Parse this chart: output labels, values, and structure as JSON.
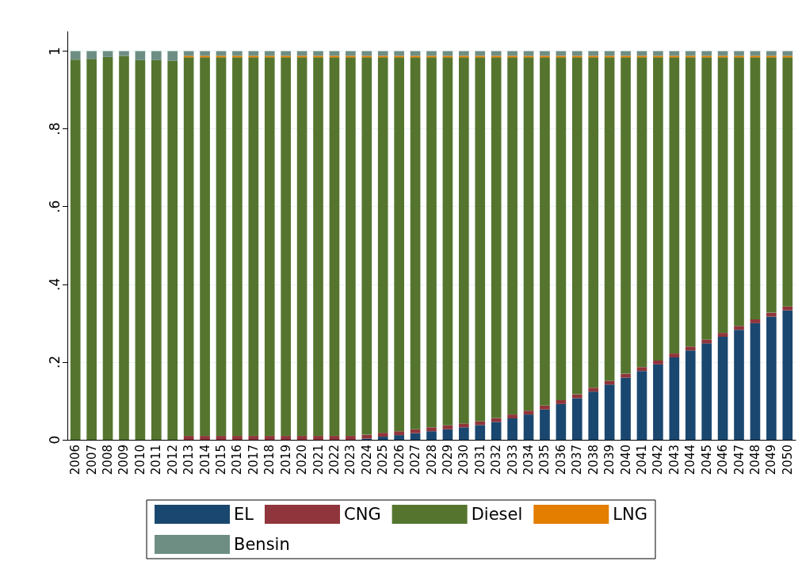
{
  "chart_data": {
    "type": "bar",
    "stacked": true,
    "categories": [
      "2006",
      "2007",
      "2008",
      "2009",
      "2010",
      "2011",
      "2012",
      "2013",
      "2014",
      "2015",
      "2016",
      "2017",
      "2018",
      "2019",
      "2020",
      "2021",
      "2022",
      "2023",
      "2024",
      "2025",
      "2026",
      "2027",
      "2028",
      "2029",
      "2030",
      "2031",
      "2032",
      "2033",
      "2034",
      "2035",
      "2036",
      "2037",
      "2038",
      "2039",
      "2040",
      "2041",
      "2042",
      "2043",
      "2044",
      "2045",
      "2046",
      "2047",
      "2048",
      "2049",
      "2050"
    ],
    "series": [
      {
        "name": "EL",
        "color": "#1a476f",
        "values": [
          0,
          0,
          0,
          0,
          0,
          0,
          0,
          0,
          0,
          0,
          0,
          0,
          0,
          0,
          0,
          0,
          0,
          0,
          0.003,
          0.008,
          0.012,
          0.017,
          0.022,
          0.027,
          0.032,
          0.038,
          0.046,
          0.055,
          0.065,
          0.078,
          0.092,
          0.107,
          0.124,
          0.142,
          0.16,
          0.177,
          0.194,
          0.212,
          0.23,
          0.248,
          0.265,
          0.283,
          0.3,
          0.317,
          0.333
        ]
      },
      {
        "name": "CNG",
        "color": "#90353b",
        "values": [
          0,
          0,
          0,
          0,
          0,
          0,
          0,
          0.01,
          0.01,
          0.01,
          0.01,
          0.01,
          0.01,
          0.01,
          0.01,
          0.01,
          0.01,
          0.01,
          0.01,
          0.01,
          0.01,
          0.01,
          0.01,
          0.01,
          0.01,
          0.01,
          0.01,
          0.01,
          0.01,
          0.01,
          0.01,
          0.01,
          0.01,
          0.01,
          0.01,
          0.01,
          0.01,
          0.01,
          0.01,
          0.01,
          0.01,
          0.01,
          0.01,
          0.01,
          0.01
        ]
      },
      {
        "name": "Diesel",
        "color": "#55752f",
        "values": [
          0.978,
          0.98,
          0.985,
          0.988,
          0.977,
          0.977,
          0.975,
          0.974,
          0.974,
          0.974,
          0.974,
          0.974,
          0.974,
          0.974,
          0.974,
          0.974,
          0.974,
          0.974,
          0.971,
          0.966,
          0.962,
          0.957,
          0.952,
          0.947,
          0.942,
          0.936,
          0.928,
          0.919,
          0.909,
          0.896,
          0.882,
          0.867,
          0.85,
          0.832,
          0.814,
          0.797,
          0.78,
          0.762,
          0.744,
          0.726,
          0.709,
          0.691,
          0.674,
          0.657,
          0.641
        ]
      },
      {
        "name": "LNG",
        "color": "#e37e00",
        "values": [
          0,
          0,
          0,
          0,
          0,
          0,
          0,
          0.004,
          0.004,
          0.004,
          0.004,
          0.004,
          0.004,
          0.004,
          0.004,
          0.004,
          0.004,
          0.004,
          0.004,
          0.004,
          0.004,
          0.004,
          0.004,
          0.004,
          0.004,
          0.004,
          0.004,
          0.004,
          0.004,
          0.004,
          0.004,
          0.004,
          0.004,
          0.004,
          0.004,
          0.004,
          0.004,
          0.004,
          0.004,
          0.004,
          0.004,
          0.004,
          0.004,
          0.004,
          0.004
        ]
      },
      {
        "name": "Bensin",
        "color": "#6e8e84",
        "values": [
          0.022,
          0.02,
          0.015,
          0.012,
          0.023,
          0.023,
          0.025,
          0.012,
          0.012,
          0.012,
          0.012,
          0.012,
          0.012,
          0.012,
          0.012,
          0.012,
          0.012,
          0.012,
          0.012,
          0.012,
          0.012,
          0.012,
          0.012,
          0.012,
          0.012,
          0.012,
          0.012,
          0.012,
          0.012,
          0.012,
          0.012,
          0.012,
          0.012,
          0.012,
          0.012,
          0.012,
          0.012,
          0.012,
          0.012,
          0.012,
          0.012,
          0.012,
          0.012,
          0.012,
          0.012
        ]
      }
    ],
    "ylim": [
      0,
      1.05
    ],
    "yticks": [
      0,
      {
        "value": 0.2,
        "label": ".2"
      },
      {
        "value": 0.4,
        "label": ".4"
      },
      {
        "value": 0.6,
        "label": ".6"
      },
      {
        "value": 0.8,
        "label": ".8"
      },
      1
    ],
    "grid": "y",
    "legend": "bottom"
  }
}
